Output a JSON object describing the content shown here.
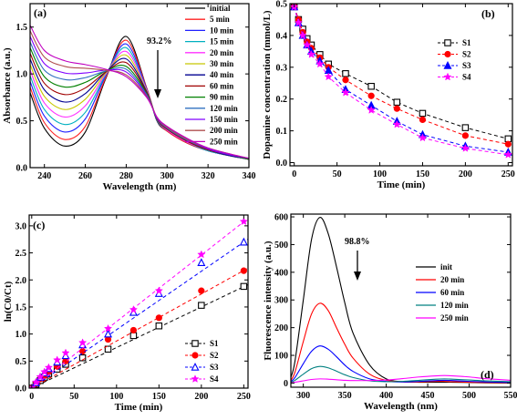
{
  "chart_data": [
    {
      "panel": "(a)",
      "type": "line",
      "xlabel": "Wavelength (nm)",
      "ylabel": "Absorbance (a.u.)",
      "xlim": [
        233,
        340
      ],
      "ylim": [
        0.0,
        1.75
      ],
      "xticks": [
        "240",
        "260",
        "280",
        "300",
        "320",
        "340"
      ],
      "yticks": [
        "0.0",
        "0.5",
        "1.0",
        "1.5"
      ],
      "annotation": "93.2%",
      "legend_position": "top-right",
      "x": [
        233,
        240,
        250,
        260,
        270,
        280,
        290,
        295,
        300,
        310,
        320,
        330,
        340
      ],
      "series": [
        {
          "name": "initial",
          "color": "#000000",
          "values": [
            0.8,
            0.42,
            0.23,
            0.38,
            0.95,
            1.4,
            0.85,
            0.5,
            0.39,
            0.26,
            0.18,
            0.13,
            0.09
          ]
        },
        {
          "name": "5 min",
          "color": "#ff2020",
          "values": [
            0.86,
            0.48,
            0.3,
            0.44,
            0.96,
            1.36,
            0.85,
            0.51,
            0.39,
            0.26,
            0.18,
            0.13,
            0.09
          ]
        },
        {
          "name": "10 min",
          "color": "#2020ff",
          "values": [
            0.92,
            0.55,
            0.38,
            0.52,
            0.98,
            1.32,
            0.84,
            0.51,
            0.4,
            0.27,
            0.18,
            0.13,
            0.09
          ]
        },
        {
          "name": "15 min",
          "color": "#00b0c0",
          "values": [
            0.98,
            0.62,
            0.46,
            0.59,
            0.99,
            1.28,
            0.83,
            0.51,
            0.4,
            0.27,
            0.18,
            0.13,
            0.09
          ]
        },
        {
          "name": "20 min",
          "color": "#ff30ff",
          "values": [
            1.04,
            0.69,
            0.54,
            0.66,
            1.0,
            1.24,
            0.83,
            0.52,
            0.4,
            0.27,
            0.19,
            0.13,
            0.09
          ]
        },
        {
          "name": "30 min",
          "color": "#c8c800",
          "values": [
            1.1,
            0.76,
            0.62,
            0.73,
            1.01,
            1.2,
            0.82,
            0.52,
            0.41,
            0.28,
            0.19,
            0.13,
            0.09
          ]
        },
        {
          "name": "40 min",
          "color": "#000090",
          "values": [
            1.16,
            0.83,
            0.7,
            0.79,
            1.02,
            1.16,
            0.81,
            0.52,
            0.41,
            0.28,
            0.19,
            0.13,
            0.09
          ]
        },
        {
          "name": "60 min",
          "color": "#a00000",
          "values": [
            1.22,
            0.9,
            0.78,
            0.85,
            1.02,
            1.12,
            0.8,
            0.52,
            0.41,
            0.28,
            0.19,
            0.14,
            0.09
          ]
        },
        {
          "name": "90 min",
          "color": "#008000",
          "values": [
            1.28,
            0.97,
            0.86,
            0.91,
            1.03,
            1.08,
            0.79,
            0.53,
            0.42,
            0.29,
            0.2,
            0.14,
            0.09
          ]
        },
        {
          "name": "120 min",
          "color": "#3070c0",
          "values": [
            1.34,
            1.04,
            0.94,
            0.96,
            1.03,
            1.05,
            0.78,
            0.53,
            0.42,
            0.29,
            0.2,
            0.14,
            0.1
          ]
        },
        {
          "name": "150 min",
          "color": "#8000ff",
          "values": [
            1.4,
            1.11,
            1.01,
            1.01,
            1.04,
            1.02,
            0.77,
            0.53,
            0.43,
            0.3,
            0.2,
            0.14,
            0.1
          ]
        },
        {
          "name": "200 min",
          "color": "#b05050",
          "values": [
            1.46,
            1.18,
            1.08,
            1.06,
            1.04,
            0.99,
            0.76,
            0.54,
            0.43,
            0.3,
            0.21,
            0.15,
            0.1
          ]
        },
        {
          "name": "250 min",
          "color": "#c000c0",
          "values": [
            1.52,
            1.25,
            1.14,
            1.1,
            1.05,
            0.97,
            0.75,
            0.54,
            0.44,
            0.31,
            0.21,
            0.15,
            0.1
          ]
        }
      ]
    },
    {
      "panel": "(b)",
      "type": "line",
      "xlabel": "Time (min)",
      "ylabel": "Dopamine concentration (mmol/L)",
      "xlim": [
        -5,
        255
      ],
      "ylim": [
        -0.01,
        0.5
      ],
      "xticks": [
        "0",
        "50",
        "100",
        "150",
        "200",
        "250"
      ],
      "yticks": [
        "0.0",
        "0.1",
        "0.2",
        "0.3",
        "0.4",
        "0.5"
      ],
      "legend_position": "right",
      "x": [
        0,
        5,
        10,
        15,
        20,
        30,
        40,
        60,
        90,
        120,
        150,
        200,
        250
      ],
      "series": [
        {
          "name": "S1",
          "color": "#000000",
          "marker": "square-open",
          "values": [
            0.49,
            0.45,
            0.42,
            0.39,
            0.37,
            0.34,
            0.31,
            0.28,
            0.24,
            0.19,
            0.155,
            0.11,
            0.075
          ]
        },
        {
          "name": "S2",
          "color": "#ff0000",
          "marker": "circle",
          "values": [
            0.49,
            0.45,
            0.41,
            0.38,
            0.36,
            0.33,
            0.3,
            0.26,
            0.21,
            0.17,
            0.135,
            0.085,
            0.058
          ]
        },
        {
          "name": "S3",
          "color": "#0000ff",
          "marker": "triangle",
          "values": [
            0.49,
            0.44,
            0.4,
            0.37,
            0.35,
            0.32,
            0.29,
            0.23,
            0.18,
            0.13,
            0.088,
            0.052,
            0.033
          ]
        },
        {
          "name": "S4",
          "color": "#ff00ff",
          "marker": "star",
          "values": [
            0.49,
            0.44,
            0.4,
            0.37,
            0.34,
            0.31,
            0.27,
            0.22,
            0.165,
            0.12,
            0.078,
            0.045,
            0.025
          ]
        }
      ]
    },
    {
      "panel": "(c)",
      "type": "scatter",
      "xlabel": "Time (min)",
      "ylabel": "ln(C0/Ct)",
      "xlim": [
        -3,
        255
      ],
      "ylim": [
        0.0,
        3.2
      ],
      "xticks": [
        "0",
        "50",
        "100",
        "150",
        "200",
        "250"
      ],
      "yticks": [
        "0.0",
        "0.5",
        "1.0",
        "1.5",
        "2.0",
        "2.5",
        "3.0"
      ],
      "legend_position": "bottom-right",
      "x": [
        0,
        5,
        10,
        15,
        20,
        30,
        40,
        60,
        90,
        120,
        150,
        200,
        250
      ],
      "series": [
        {
          "name": "S1",
          "color": "#000000",
          "marker": "square-open",
          "values": [
            0.0,
            0.07,
            0.14,
            0.2,
            0.26,
            0.35,
            0.44,
            0.56,
            0.72,
            0.97,
            1.15,
            1.53,
            1.88
          ]
        },
        {
          "name": "S2",
          "color": "#ff0000",
          "marker": "circle",
          "values": [
            0.0,
            0.08,
            0.17,
            0.23,
            0.3,
            0.4,
            0.5,
            0.68,
            0.9,
            1.07,
            1.3,
            1.8,
            2.17
          ]
        },
        {
          "name": "S3",
          "color": "#0000ff",
          "marker": "triangle-open",
          "values": [
            0.0,
            0.1,
            0.2,
            0.28,
            0.36,
            0.48,
            0.6,
            0.8,
            1.0,
            1.4,
            1.75,
            2.32,
            2.7
          ]
        },
        {
          "name": "S4",
          "color": "#ff00ff",
          "marker": "star",
          "values": [
            0.0,
            0.11,
            0.21,
            0.3,
            0.38,
            0.52,
            0.65,
            0.84,
            1.1,
            1.45,
            1.8,
            2.47,
            3.08
          ]
        }
      ],
      "fit_slopes": [
        0.0075,
        0.0087,
        0.0108,
        0.0123
      ]
    },
    {
      "panel": "(d)",
      "type": "line",
      "xlabel": "Wavelength (nm)",
      "ylabel": "Fluorescence intensity (a.u.)",
      "xlim": [
        285,
        550
      ],
      "ylim": [
        -15,
        610
      ],
      "xticks": [
        "300",
        "350",
        "400",
        "450",
        "500",
        "550"
      ],
      "yticks": [
        "0",
        "100",
        "200",
        "300",
        "400",
        "500",
        "600"
      ],
      "annotation": "98.8%",
      "legend_position": "right",
      "x": [
        285,
        290,
        300,
        310,
        320,
        330,
        340,
        350,
        360,
        380,
        400,
        420,
        440,
        460,
        470,
        480,
        500,
        520,
        550
      ],
      "series": [
        {
          "name": "init",
          "color": "#000000",
          "values": [
            20,
            80,
            300,
            520,
            598,
            540,
            420,
            290,
            180,
            65,
            15,
            5,
            3,
            3,
            3,
            3,
            2,
            1,
            0
          ]
        },
        {
          "name": "20 min",
          "color": "#ff0000",
          "values": [
            10,
            40,
            150,
            250,
            288,
            262,
            200,
            140,
            90,
            32,
            10,
            4,
            4,
            6,
            6,
            5,
            3,
            2,
            1
          ]
        },
        {
          "name": "60 min",
          "color": "#0000ff",
          "values": [
            5,
            20,
            70,
            115,
            134,
            122,
            95,
            65,
            42,
            15,
            6,
            4,
            6,
            9,
            10,
            9,
            6,
            4,
            2
          ]
        },
        {
          "name": "120 min",
          "color": "#008080",
          "values": [
            3,
            10,
            32,
            52,
            60,
            55,
            43,
            30,
            20,
            8,
            5,
            6,
            10,
            14,
            15,
            14,
            11,
            8,
            5
          ]
        },
        {
          "name": "250 min",
          "color": "#ff00ff",
          "values": [
            1,
            3,
            8,
            13,
            15,
            14,
            12,
            10,
            9,
            9,
            11,
            16,
            22,
            26,
            27,
            26,
            22,
            16,
            10
          ]
        }
      ]
    }
  ]
}
